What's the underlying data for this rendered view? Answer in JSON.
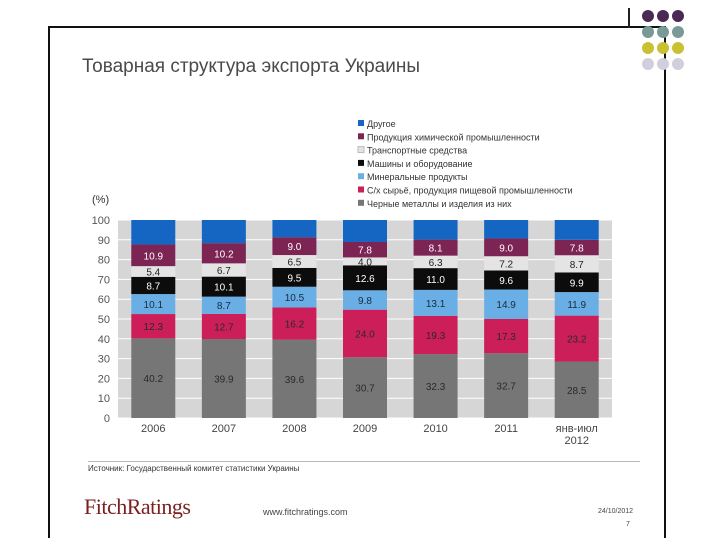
{
  "slide": {
    "title": "Товарная структура экспорта Украины",
    "source": "Источник: Государственный комитет статистики Украины",
    "logo_text": "FitchRatings",
    "website": "www.fitchratings.com",
    "date": "24/10/2012",
    "page_number": "7"
  },
  "chart_data": {
    "type": "bar",
    "stacked": true,
    "ylabel": "(%)",
    "ylim": [
      0,
      100
    ],
    "yticks": [
      0,
      10,
      20,
      30,
      40,
      50,
      60,
      70,
      80,
      90,
      100
    ],
    "categories": [
      "2006",
      "2007",
      "2008",
      "2009",
      "2010",
      "2011",
      "янв-июл 2012"
    ],
    "series": [
      {
        "name": "Черные металлы и изделия из них",
        "color": "#767676",
        "text_color": "#2a2a2a",
        "values": [
          40.2,
          39.9,
          39.6,
          30.7,
          32.3,
          32.7,
          28.5
        ]
      },
      {
        "name": "С/х сырьё, продукция пищевой промышленности",
        "color": "#cc1f5a",
        "text_color": "#2a2a2a",
        "values": [
          12.3,
          12.7,
          16.2,
          24.0,
          19.3,
          17.3,
          23.2
        ]
      },
      {
        "name": "Минеральные продукты",
        "color": "#6aaee6",
        "text_color": "#1a2a40",
        "values": [
          10.1,
          8.7,
          10.5,
          9.8,
          13.1,
          14.9,
          11.9
        ]
      },
      {
        "name": "Машины и оборудование",
        "color": "#0c0c0c",
        "text_color": "#ffffff",
        "values": [
          8.7,
          10.1,
          9.5,
          12.6,
          11.0,
          9.6,
          9.9
        ]
      },
      {
        "name": "Транспортные средства",
        "color": "#e4e4e4",
        "text_color": "#222222",
        "values": [
          5.4,
          6.7,
          6.5,
          4.0,
          6.3,
          7.2,
          8.7
        ]
      },
      {
        "name": "Продукция химической промышленности",
        "color": "#7c2454",
        "text_color": "#ffffff",
        "values": [
          10.9,
          10.2,
          9.0,
          7.8,
          8.1,
          9.0,
          7.8
        ]
      },
      {
        "name": "Другое",
        "color": "#1466c2",
        "text_color": "#ffffff",
        "values": [
          12.4,
          11.7,
          8.7,
          11.1,
          9.9,
          9.3,
          10.0
        ]
      }
    ],
    "legend_order": [
      6,
      5,
      4,
      3,
      2,
      1,
      0
    ],
    "legend_position": "top-right"
  },
  "corner_dots": [
    "#4a2a55",
    "#4a2a55",
    "#4a2a55",
    "#7a9a98",
    "#7a9a98",
    "#7a9a98",
    "#c8c233",
    "#c8c233",
    "#c8c233",
    "#d0d0dc",
    "#d0d0dc",
    "#d0d0dc"
  ]
}
